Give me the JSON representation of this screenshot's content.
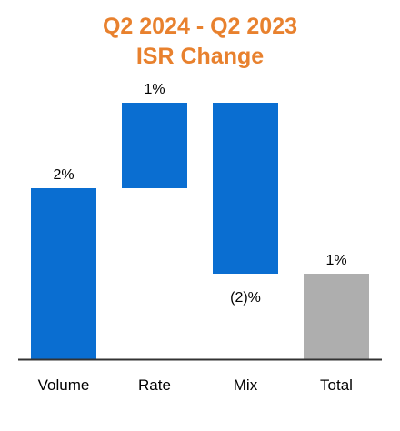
{
  "chart_data": {
    "type": "bar",
    "subtype": "waterfall",
    "title": [
      "Q2 2024 - Q2 2023",
      "ISR Change"
    ],
    "categories": [
      "Volume",
      "Rate",
      "Mix",
      "Total"
    ],
    "values": [
      2,
      1,
      -2,
      1
    ],
    "data_labels": [
      "2%",
      "1%",
      "(2)%",
      "1%"
    ],
    "measure": [
      "relative",
      "relative",
      "relative",
      "total"
    ],
    "ylim": [
      0,
      3.2
    ],
    "grid": false,
    "legend": "none",
    "colors": {
      "title": "#E8812E",
      "bar": "#0A6ED1",
      "total": "#AEAEAE",
      "axis": "#333333",
      "text": "#000000"
    }
  }
}
